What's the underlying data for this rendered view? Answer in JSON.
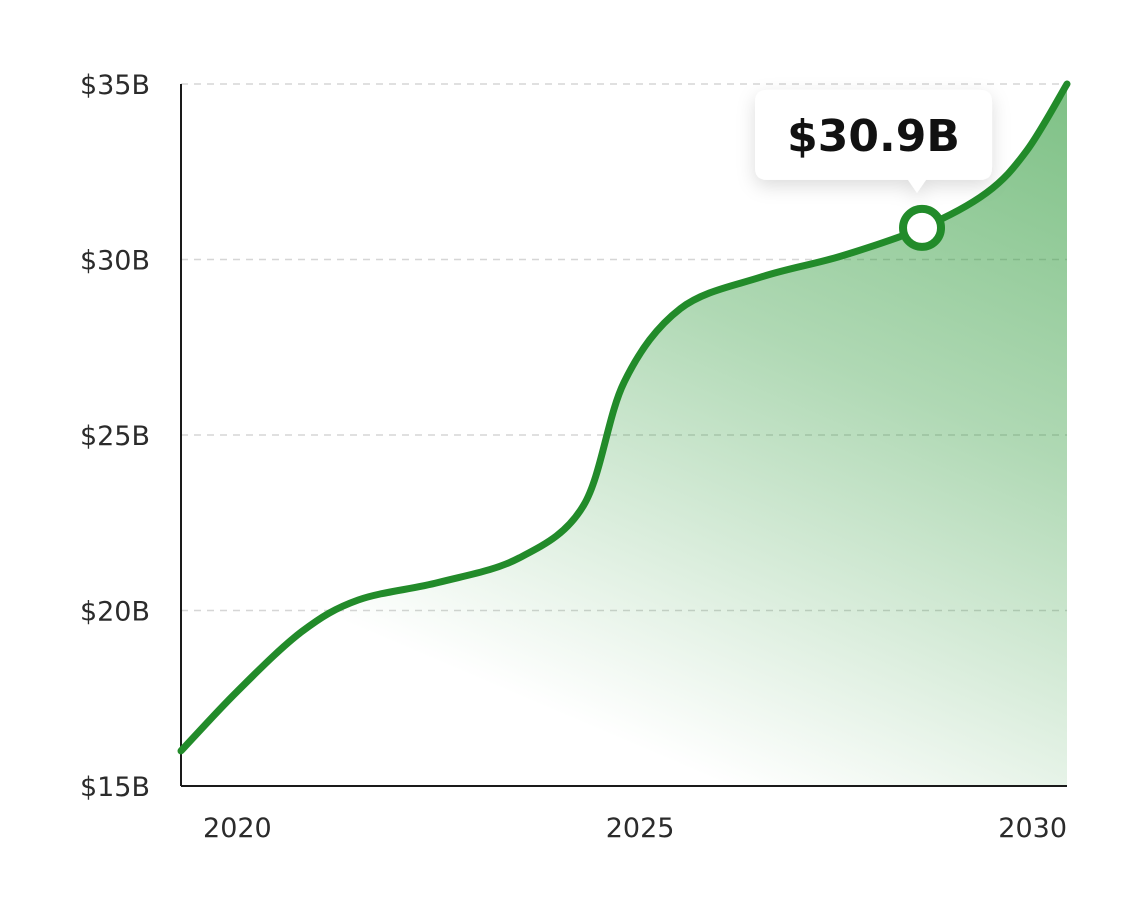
{
  "chart_data": {
    "type": "area",
    "title": "",
    "xlabel": "",
    "ylabel": "",
    "xlim": [
      2019.3,
      2030.3
    ],
    "ylim": [
      15,
      35
    ],
    "x_ticks": [
      2020,
      2025,
      2030
    ],
    "x_tick_labels": [
      "2020",
      "2025",
      "2030"
    ],
    "y_ticks": [
      15,
      20,
      25,
      30,
      35
    ],
    "y_tick_labels": [
      "$15B",
      "$20B",
      "$25B",
      "$30B",
      "$35B"
    ],
    "grid": "horizontal dashed",
    "series": [
      {
        "name": "",
        "color": "#228b2a",
        "points": [
          [
            2019.3,
            16.0
          ],
          [
            2020.0,
            17.7
          ],
          [
            2020.8,
            19.4
          ],
          [
            2021.5,
            20.3
          ],
          [
            2022.5,
            20.8
          ],
          [
            2023.5,
            21.5
          ],
          [
            2024.3,
            23.0
          ],
          [
            2024.8,
            26.5
          ],
          [
            2025.5,
            28.6
          ],
          [
            2026.5,
            29.5
          ],
          [
            2027.5,
            30.1
          ],
          [
            2028.5,
            30.9
          ],
          [
            2029.3,
            31.9
          ],
          [
            2029.8,
            33.1
          ],
          [
            2030.3,
            35.0
          ]
        ]
      }
    ],
    "highlight": {
      "x": 2028.5,
      "y": 30.9,
      "label": "$30.9B"
    },
    "fill_color": "#2e9a3a",
    "grid_color": "#d6d6d6",
    "axis_color": "#1a1a1a"
  }
}
